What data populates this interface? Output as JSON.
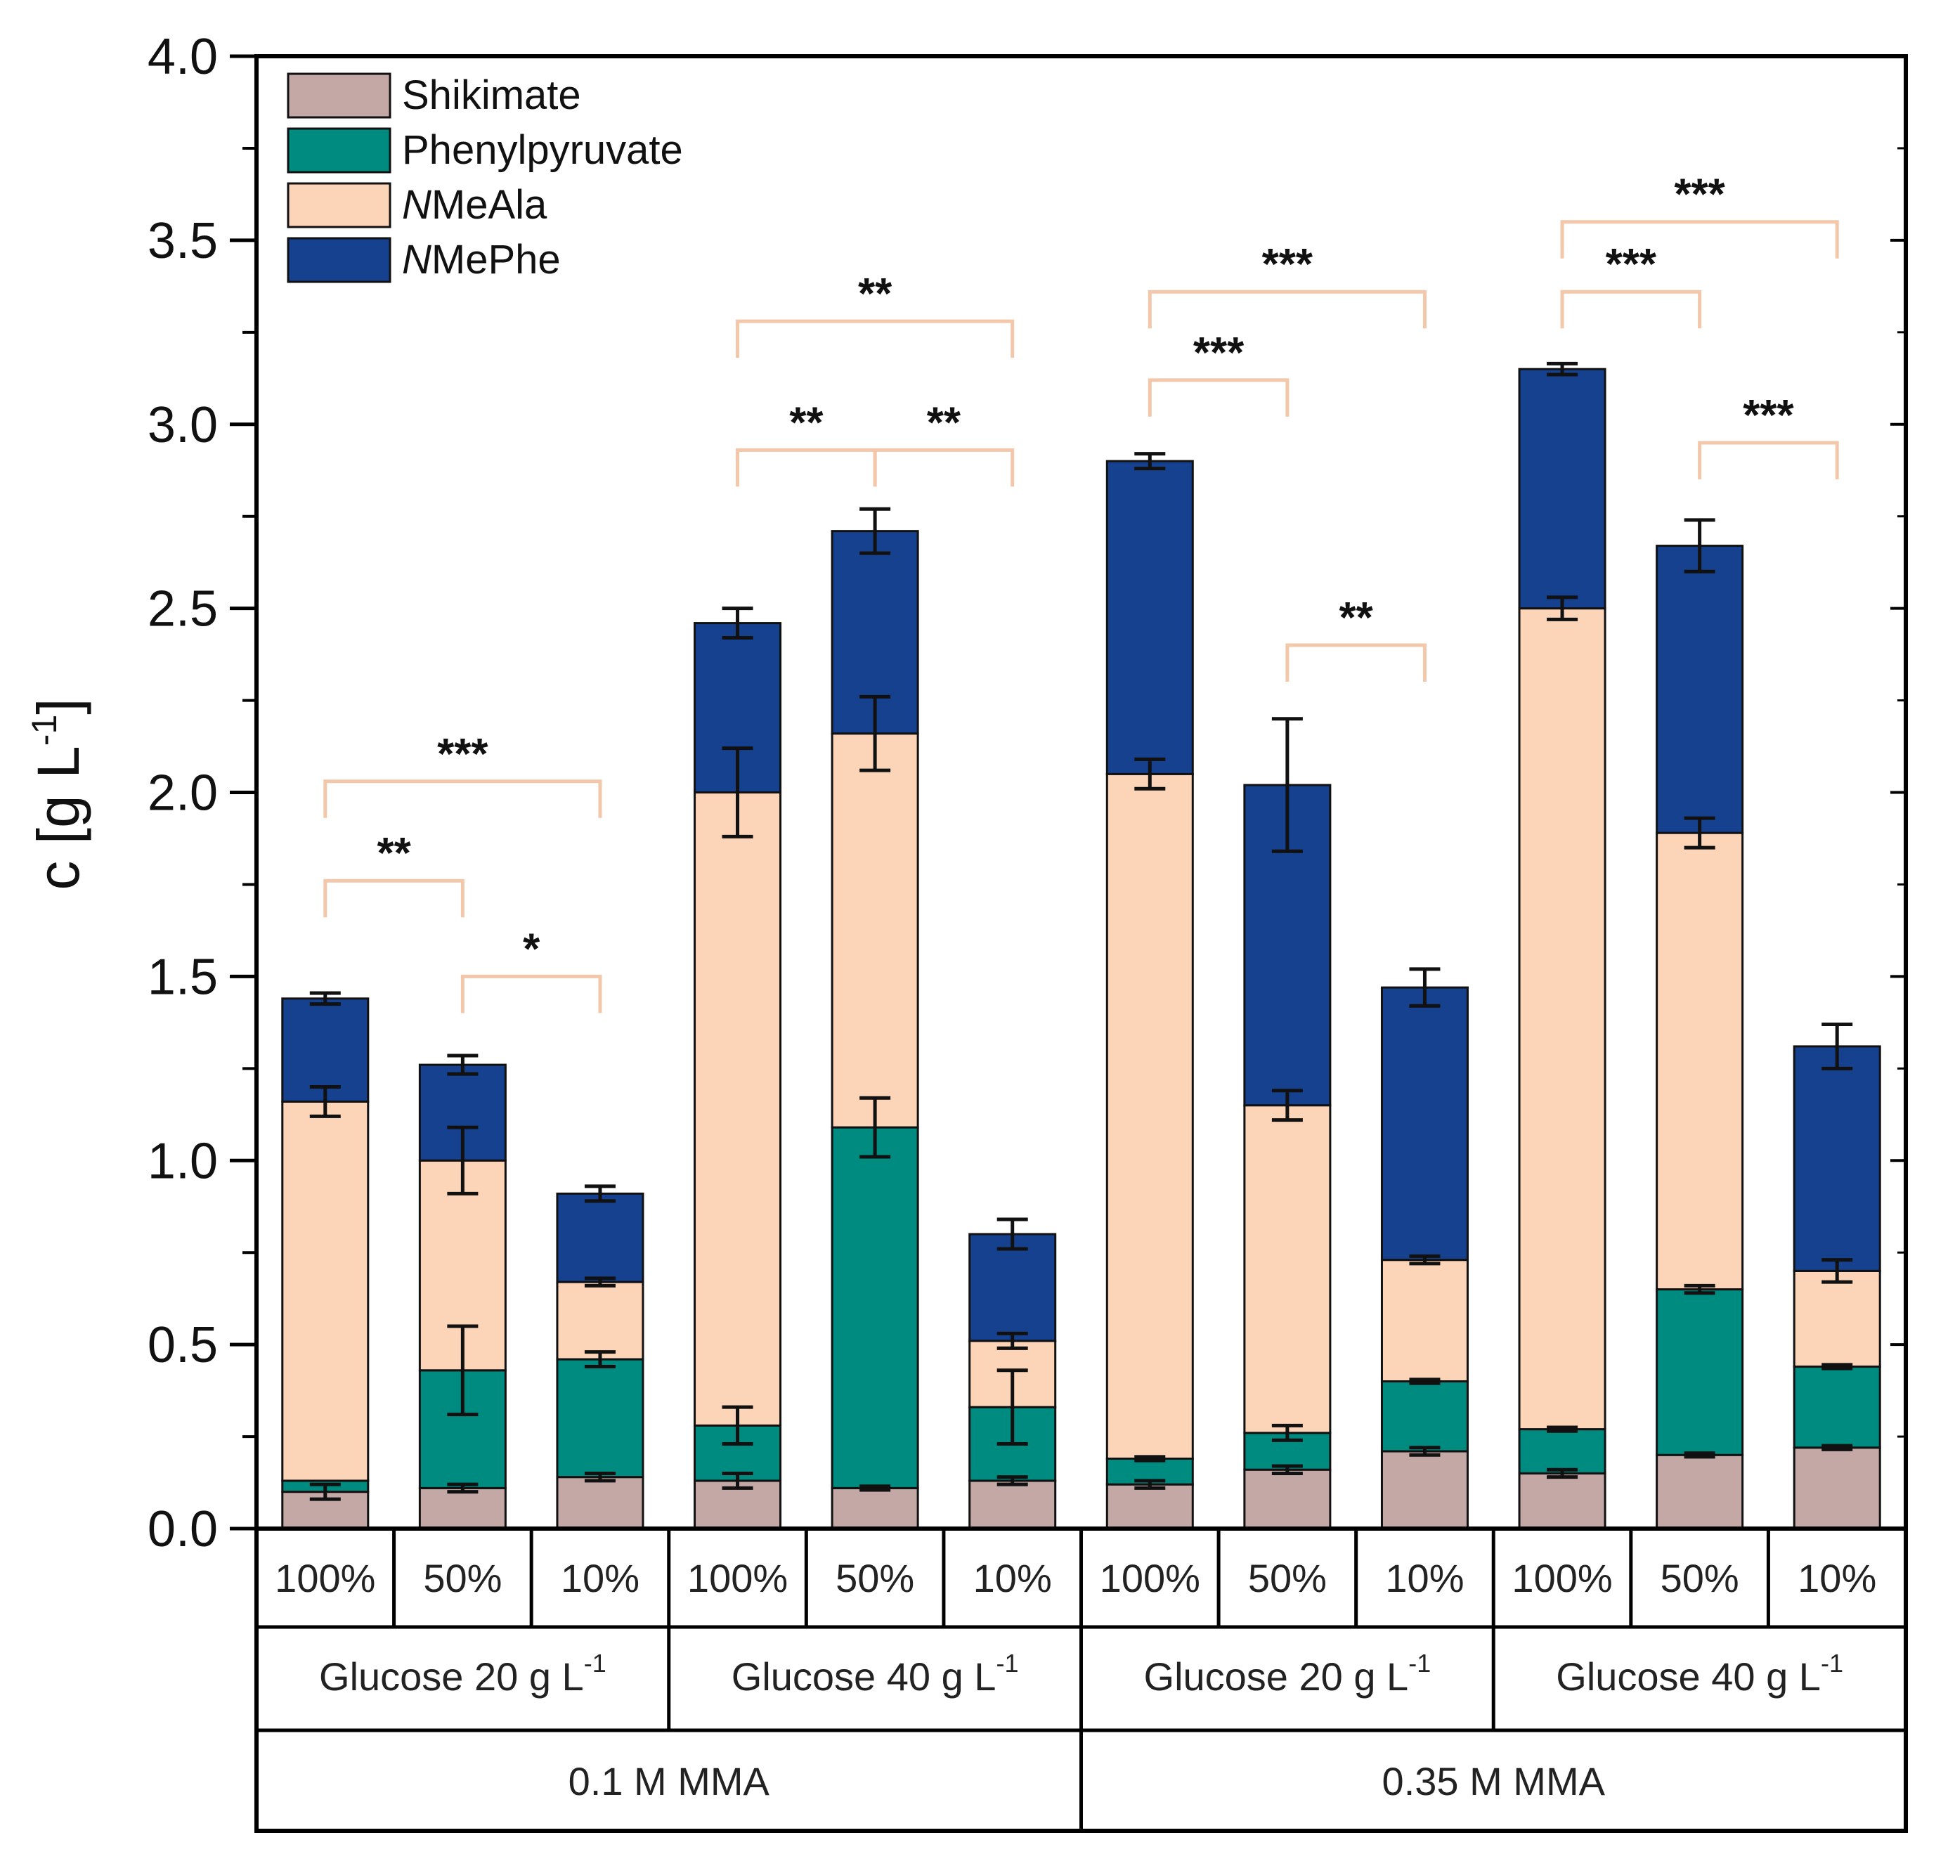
{
  "chart_data": {
    "type": "bar",
    "stacked": true,
    "title": "",
    "ylabel": "c [g L",
    "ylabel_sup": "-1",
    "ylabel_end": "]",
    "ylim": [
      0,
      4.0
    ],
    "yticks": [
      0.0,
      0.5,
      1.0,
      1.5,
      2.0,
      2.5,
      3.0,
      3.5,
      4.0
    ],
    "ytick_labels": [
      "0.0",
      "0.5",
      "1.0",
      "1.5",
      "2.0",
      "2.5",
      "3.0",
      "3.5",
      "4.0"
    ],
    "categories": [
      "100%",
      "50%",
      "10%",
      "100%",
      "50%",
      "10%",
      "100%",
      "50%",
      "10%",
      "100%",
      "50%",
      "10%"
    ],
    "glucose_groups": [
      {
        "label": "Glucose 20 g L",
        "sup": "-1"
      },
      {
        "label": "Glucose 40 g L",
        "sup": "-1"
      },
      {
        "label": "Glucose 20 g L",
        "sup": "-1"
      },
      {
        "label": "Glucose 40 g L",
        "sup": "-1"
      }
    ],
    "mma_groups": [
      "0.1 M  MMA",
      "0.35 M  MMA"
    ],
    "series": [
      {
        "name": "Shikimate",
        "prefix": "",
        "rest": "Shikimate",
        "color": "#c4a8a6",
        "values": [
          0.1,
          0.11,
          0.14,
          0.13,
          0.11,
          0.13,
          0.12,
          0.16,
          0.21,
          0.15,
          0.2,
          0.22
        ],
        "errors": [
          0.02,
          0.01,
          0.01,
          0.02,
          0.005,
          0.01,
          0.01,
          0.01,
          0.01,
          0.01,
          0.005,
          0.005
        ]
      },
      {
        "name": "Phenylpyruvate",
        "prefix": "",
        "rest": "Phenylpyruvate",
        "color": "#008b80",
        "values": [
          0.03,
          0.32,
          0.32,
          0.15,
          0.98,
          0.2,
          0.07,
          0.1,
          0.19,
          0.12,
          0.45,
          0.22
        ],
        "errors": [
          0.0,
          0.12,
          0.02,
          0.05,
          0.08,
          0.1,
          0.005,
          0.02,
          0.005,
          0.005,
          0.01,
          0.005
        ]
      },
      {
        "name": "NMeAla",
        "prefix": "N",
        "rest": "MeAla",
        "color": "#fcd4b8",
        "values": [
          1.03,
          0.57,
          0.21,
          1.72,
          1.07,
          0.18,
          1.86,
          0.89,
          0.33,
          2.23,
          1.24,
          0.26
        ],
        "errors": [
          0.04,
          0.09,
          0.01,
          0.12,
          0.1,
          0.02,
          0.04,
          0.04,
          0.01,
          0.03,
          0.04,
          0.03
        ]
      },
      {
        "name": "NMePhe",
        "prefix": "N",
        "rest": "MePhe",
        "color": "#15418f",
        "values": [
          0.28,
          0.26,
          0.24,
          0.46,
          0.55,
          0.29,
          0.85,
          0.87,
          0.74,
          0.65,
          0.78,
          0.61
        ],
        "errors": [
          0.015,
          0.025,
          0.02,
          0.04,
          0.06,
          0.04,
          0.02,
          0.18,
          0.05,
          0.015,
          0.07,
          0.06
        ]
      }
    ],
    "significance": [
      {
        "from": 0,
        "to": 2,
        "y": 2.03,
        "label": "***"
      },
      {
        "from": 0,
        "to": 1,
        "y": 1.76,
        "label": "**"
      },
      {
        "from": 1,
        "to": 2,
        "y": 1.5,
        "label": "*"
      },
      {
        "from": 3,
        "to": 5,
        "y": 3.28,
        "label": "**"
      },
      {
        "from": 3,
        "to": 4,
        "y": 2.93,
        "label": "**"
      },
      {
        "from": 4,
        "to": 5,
        "y": 2.93,
        "label": "**"
      },
      {
        "from": 6,
        "to": 8,
        "y": 3.36,
        "label": "***"
      },
      {
        "from": 6,
        "to": 7,
        "y": 3.12,
        "label": "***"
      },
      {
        "from": 7,
        "to": 8,
        "y": 2.4,
        "label": "**"
      },
      {
        "from": 9,
        "to": 11,
        "y": 3.55,
        "label": "***"
      },
      {
        "from": 9,
        "to": 10,
        "y": 3.36,
        "label": "***"
      },
      {
        "from": 10,
        "to": 11,
        "y": 2.95,
        "label": "***"
      }
    ],
    "legend_position": "top-left"
  }
}
